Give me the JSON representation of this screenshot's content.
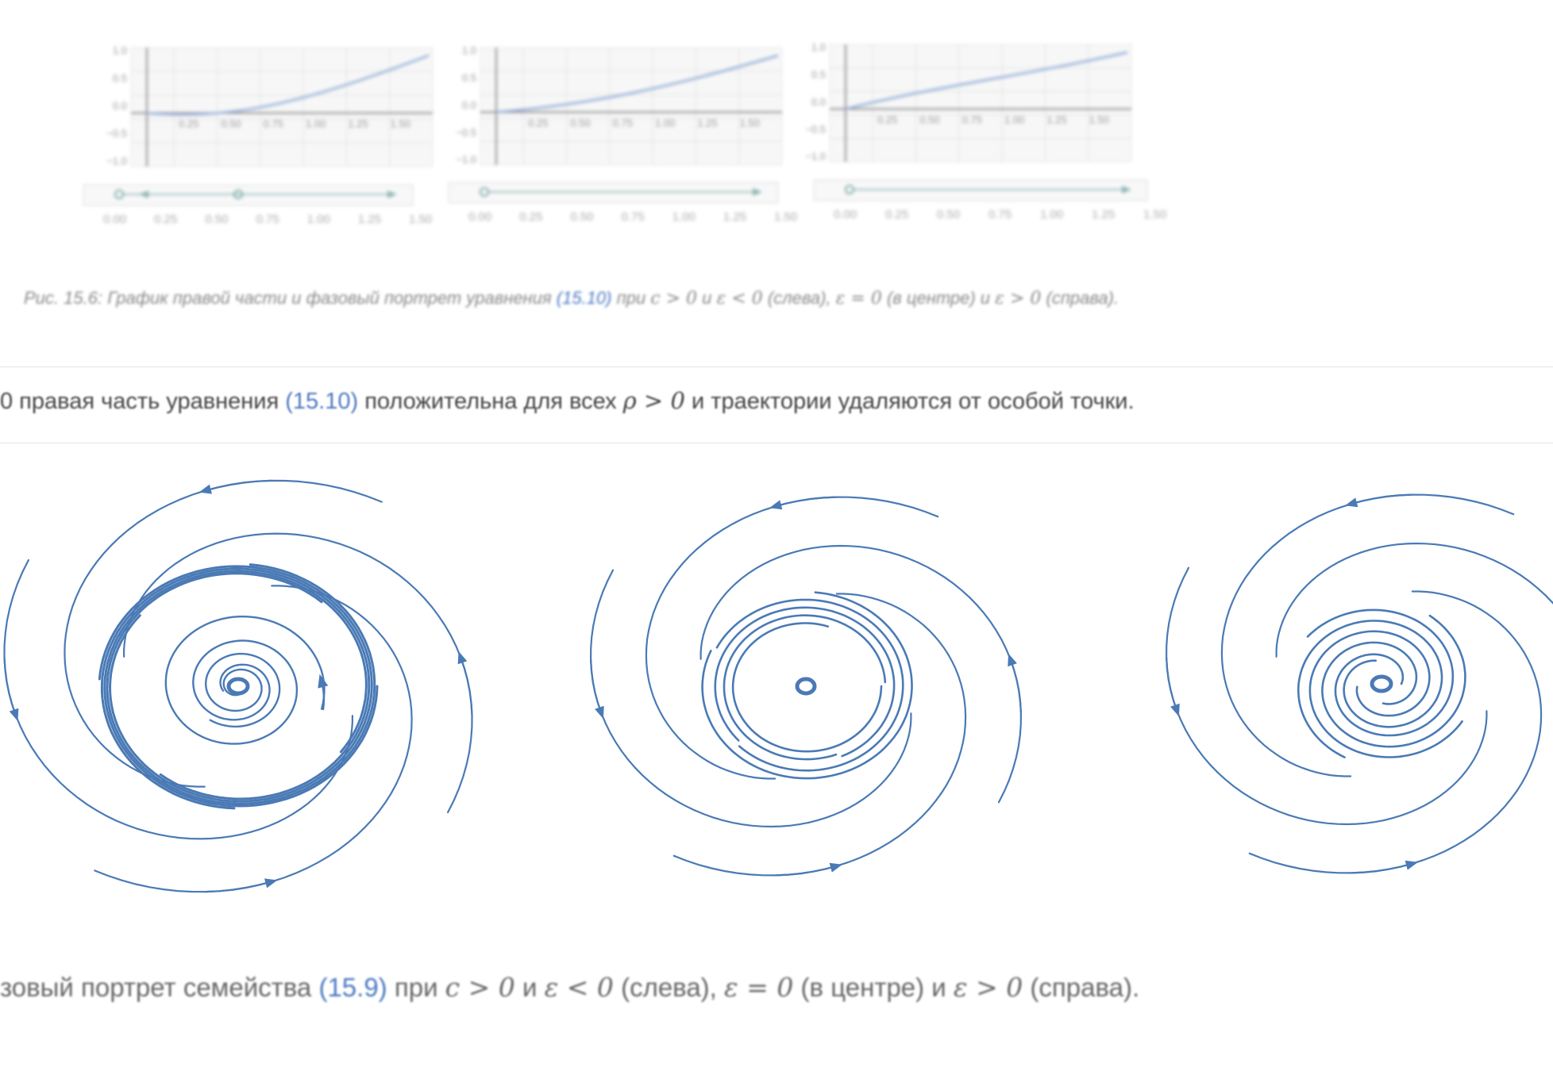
{
  "figure_top": {
    "caption_lead": "Рис. 15.6: ",
    "caption_body": "График правой части и фазовый портрет уравнения ",
    "caption_ref": "(15.10)",
    "caption_p1": " при ",
    "caption_m1": "c > 0",
    "caption_p2": " и ",
    "caption_m2": "ε < 0",
    "caption_p3": " (слева), ",
    "caption_m3": "ε = 0",
    "caption_p4": " (в центре) и ",
    "caption_m4": "ε > 0",
    "caption_p5": " (справа).",
    "plots": [
      {
        "y_ticks": [
          "1.0",
          "0.5",
          "0.0",
          "−0.5",
          "−1.0"
        ],
        "x_ticks": [
          "0.25",
          "0.50",
          "0.75",
          "1.00",
          "1.25",
          "1.50"
        ],
        "phase_ticks": [
          "0.00",
          "0.25",
          "0.50",
          "0.75",
          "1.00",
          "1.25",
          "1.50"
        ]
      },
      {
        "y_ticks": [
          "1.0",
          "0.5",
          "0.0",
          "−0.5",
          "−1.0"
        ],
        "x_ticks": [
          "0.25",
          "0.50",
          "0.75",
          "1.00",
          "1.25",
          "1.50"
        ],
        "phase_ticks": [
          "0.00",
          "0.25",
          "0.50",
          "0.75",
          "1.00",
          "1.25",
          "1.50"
        ]
      },
      {
        "y_ticks": [
          "1.0",
          "0.5",
          "0.0",
          "−0.5",
          "−1.0"
        ],
        "x_ticks": [
          "0.25",
          "0.50",
          "0.75",
          "1.00",
          "1.25",
          "1.50"
        ],
        "phase_ticks": [
          "0.00",
          "0.25",
          "0.50",
          "0.75",
          "1.00",
          "1.25",
          "1.50"
        ]
      }
    ]
  },
  "paragraph": {
    "lead": "0 правая часть уравнения ",
    "ref": "(15.10)",
    "mid": " положительна для всех ",
    "math": "ρ > 0",
    "tail": " и траектории удаляются от особой точки."
  },
  "figure_bottom": {
    "lead": "зовый портрет семейства ",
    "ref": "(15.9)",
    "p1": " при ",
    "m1": "c > 0",
    "p2": " и ",
    "m2": "ε < 0",
    "p3": " (слева), ",
    "m3": "ε = 0",
    "p4": " (в центре) и ",
    "m4": "ε > 0",
    "p5": " (справа).",
    "line_color": "#4a7ab5"
  }
}
